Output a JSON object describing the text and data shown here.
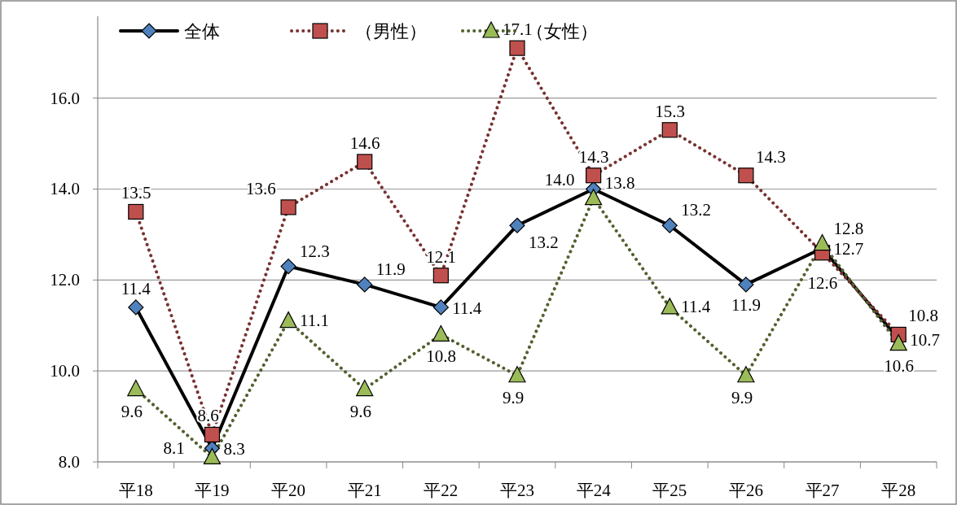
{
  "chart_data": {
    "type": "line",
    "categories": [
      "平18",
      "平19",
      "平20",
      "平21",
      "平22",
      "平23",
      "平24",
      "平25",
      "平26",
      "平27",
      "平28"
    ],
    "ylim": [
      8.0,
      17.8
    ],
    "yticks": [
      {
        "value": 8,
        "label": "8.0"
      },
      {
        "value": 10,
        "label": "10.0"
      },
      {
        "value": 12,
        "label": "12.0"
      },
      {
        "value": 14,
        "label": "14.0"
      },
      {
        "value": 16,
        "label": "16.0"
      }
    ],
    "grid": "y",
    "legend": "top left",
    "series": [
      {
        "name": "全体",
        "color": "#4f81bd",
        "marker": "diamond",
        "line_style": "solid",
        "values": [
          11.4,
          8.3,
          12.3,
          11.9,
          11.4,
          13.2,
          14.0,
          13.2,
          11.9,
          12.7,
          10.7
        ],
        "value_labels": [
          "11.4",
          "8.3",
          "12.3",
          "11.9",
          "11.4",
          "13.2",
          "14.0",
          "13.2",
          "11.9",
          "12.7",
          "10.7"
        ]
      },
      {
        "name": "（男性）",
        "color": "#c0504d",
        "marker": "square",
        "line_style": "dotted",
        "values": [
          13.5,
          8.6,
          13.6,
          14.6,
          12.1,
          17.1,
          14.3,
          15.3,
          14.3,
          12.6,
          10.8
        ],
        "value_labels": [
          "13.5",
          "8.6",
          "13.6",
          "14.6",
          "12.1",
          "17.1",
          "14.3",
          "15.3",
          "14.3",
          "12.6",
          "10.8"
        ]
      },
      {
        "name": "（女性）",
        "color": "#9bbb59",
        "marker": "triangle",
        "line_style": "dotted",
        "values": [
          9.6,
          8.1,
          11.1,
          9.6,
          10.8,
          9.9,
          13.8,
          11.4,
          9.9,
          12.8,
          10.6
        ],
        "value_labels": [
          "9.6",
          "8.1",
          "11.1",
          "9.6",
          "10.8",
          "9.9",
          "13.8",
          "11.4",
          "9.9",
          "12.8",
          "10.6"
        ]
      }
    ]
  }
}
